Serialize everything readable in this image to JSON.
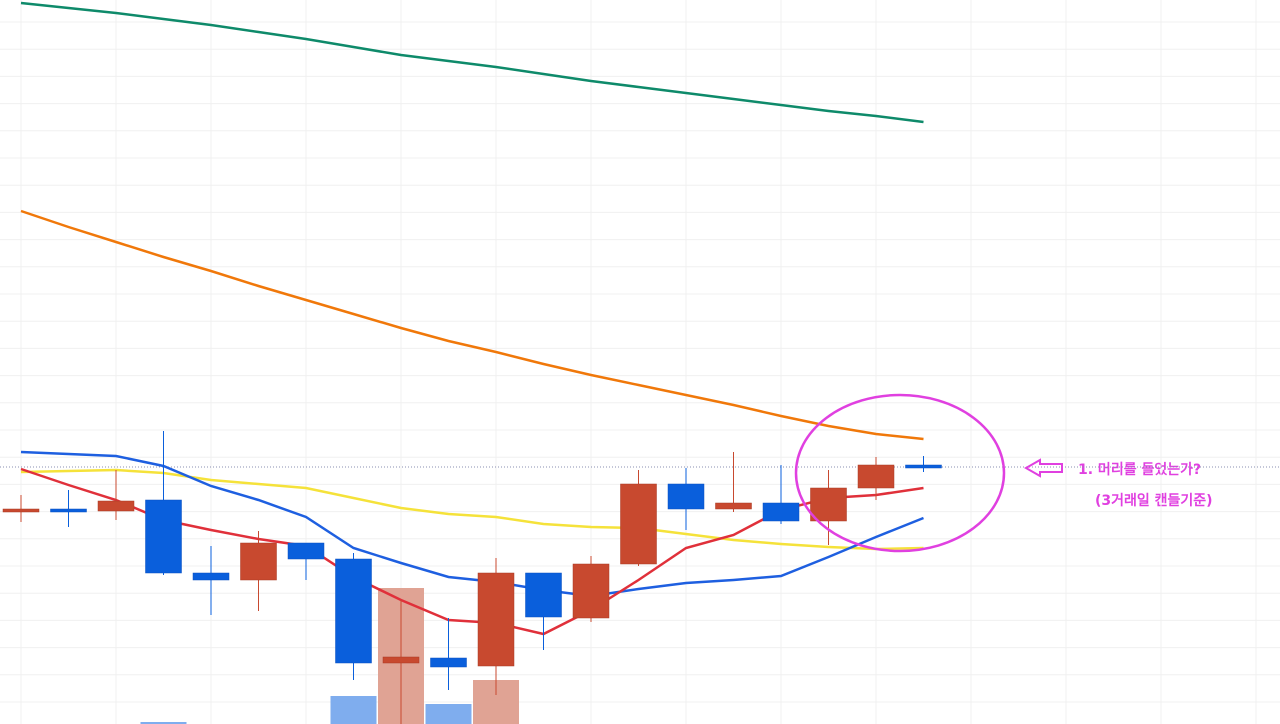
{
  "chart_data": {
    "type": "candlestick",
    "categories": [
      null,
      null,
      null,
      null,
      null,
      null,
      null,
      null,
      null,
      null,
      null,
      null,
      null,
      null,
      null,
      null,
      null,
      null,
      null,
      null
    ],
    "open": [
      212,
      215,
      213,
      224,
      151,
      144,
      181,
      165,
      61,
      66,
      58,
      151,
      106,
      160,
      240,
      215,
      221,
      203,
      236,
      259
    ],
    "high": [
      229,
      234,
      254,
      293,
      178,
      193,
      181,
      171,
      124,
      106,
      166,
      151,
      168,
      254,
      256,
      272,
      259,
      254,
      267,
      268
    ],
    "low": [
      202,
      197,
      204,
      149,
      109,
      113,
      144,
      44,
      0,
      34,
      29,
      74,
      102,
      158,
      194,
      212,
      200,
      179,
      224,
      252
    ],
    "close": [
      215,
      212,
      223,
      151,
      144,
      181,
      165,
      61,
      67,
      57,
      151,
      107,
      160,
      240,
      215,
      221,
      203,
      236,
      259,
      256
    ],
    "up_color": "#c8492f",
    "down_color": "#0a5fdc",
    "volume": [
      null,
      null,
      null,
      2,
      null,
      null,
      null,
      28,
      136,
      20,
      44,
      null,
      null,
      null,
      null,
      null,
      null,
      null,
      null,
      null
    ],
    "volume_up_color": "#e0a394",
    "volume_down_color": "#7fadee",
    "lines": [
      {
        "color": "#0e8a6a",
        "values": [
          721,
          716,
          711,
          705,
          699,
          692,
          685,
          677,
          669,
          663,
          657,
          650,
          643,
          637,
          631,
          625,
          619,
          613,
          608,
          602
        ]
      },
      {
        "color": "#f0780a",
        "values": [
          513,
          497,
          482,
          467,
          453,
          438,
          424,
          410,
          396,
          383,
          372,
          360,
          349,
          339,
          329,
          319,
          308,
          298,
          290,
          285
        ]
      },
      {
        "color": "#f5e23a",
        "values": [
          252,
          253,
          254,
          251,
          244,
          240,
          236,
          226,
          216,
          210,
          207,
          200,
          197,
          196,
          190,
          184,
          180,
          177,
          175,
          176
        ]
      },
      {
        "color": "#1e5fe0",
        "values": [
          272,
          270,
          268,
          258,
          238,
          224,
          207,
          176,
          161,
          147,
          142,
          134,
          128,
          135,
          141,
          144,
          148,
          167,
          187,
          206
        ]
      },
      {
        "color": "#e0303a",
        "values": [
          255,
          239,
          224,
          204,
          194,
          185,
          178,
          147,
          124,
          104,
          101,
          90,
          114,
          144,
          176,
          189,
          214,
          226,
          229,
          236
        ]
      }
    ],
    "price_line": 257,
    "ylim": [
      0,
      724
    ],
    "annotations": [
      "1. 머리를 들었는가?",
      "(3거래일 캔들기준)"
    ],
    "annotation_color": "#e040e0"
  }
}
